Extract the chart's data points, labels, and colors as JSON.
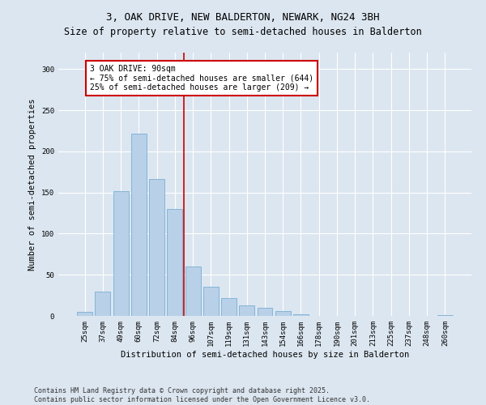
{
  "title": "3, OAK DRIVE, NEW BALDERTON, NEWARK, NG24 3BH",
  "subtitle": "Size of property relative to semi-detached houses in Balderton",
  "xlabel": "Distribution of semi-detached houses by size in Balderton",
  "ylabel": "Number of semi-detached properties",
  "categories": [
    "25sqm",
    "37sqm",
    "49sqm",
    "60sqm",
    "72sqm",
    "84sqm",
    "96sqm",
    "107sqm",
    "119sqm",
    "131sqm",
    "143sqm",
    "154sqm",
    "166sqm",
    "178sqm",
    "190sqm",
    "201sqm",
    "213sqm",
    "225sqm",
    "237sqm",
    "248sqm",
    "260sqm"
  ],
  "values": [
    5,
    30,
    152,
    222,
    166,
    130,
    60,
    35,
    22,
    13,
    10,
    6,
    2,
    0,
    0,
    0,
    0,
    0,
    0,
    0,
    1
  ],
  "bar_color": "#b8d0e8",
  "bar_edge_color": "#7aafd4",
  "vline_color": "#cc0000",
  "annotation_text": "3 OAK DRIVE: 90sqm\n← 75% of semi-detached houses are smaller (644)\n25% of semi-detached houses are larger (209) →",
  "annotation_box_color": "#ffffff",
  "annotation_box_edge": "#cc0000",
  "ylim": [
    0,
    320
  ],
  "yticks": [
    0,
    50,
    100,
    150,
    200,
    250,
    300
  ],
  "footnote1": "Contains HM Land Registry data © Crown copyright and database right 2025.",
  "footnote2": "Contains public sector information licensed under the Open Government Licence v3.0.",
  "bg_color": "#dce6f0",
  "plot_bg_color": "#dce6f0",
  "title_fontsize": 9,
  "axis_label_fontsize": 7.5,
  "tick_fontsize": 6.5,
  "annotation_fontsize": 7,
  "footnote_fontsize": 6
}
